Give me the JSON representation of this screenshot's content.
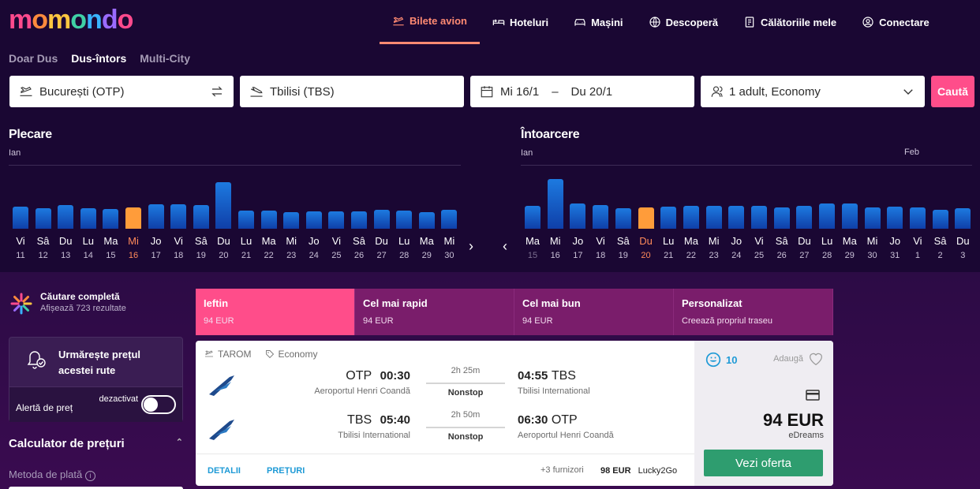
{
  "logo": [
    "m",
    "o",
    "m",
    "o",
    "n",
    "d",
    "o"
  ],
  "logo_colors": [
    "#ff4a8d",
    "#ff8a3d",
    "#ffc640",
    "#3fd0a5",
    "#39b3ff",
    "#9a6bff",
    "#ff4a8d"
  ],
  "nav": [
    {
      "label": "Bilete avion",
      "icon": "plane-icon",
      "active": true
    },
    {
      "label": "Hoteluri",
      "icon": "bed-icon"
    },
    {
      "label": "Mașini",
      "icon": "car-icon"
    },
    {
      "label": "Descoperă",
      "icon": "globe-icon"
    },
    {
      "label": "Călătoriile mele",
      "icon": "trips-icon"
    },
    {
      "label": "Conectare",
      "icon": "user-icon"
    }
  ],
  "trip_types": [
    "Doar Dus",
    "Dus-întors",
    "Multi-City"
  ],
  "search": {
    "from": "București (OTP)",
    "to": "Tbilisi (TBS)",
    "depart": "Mi 16/1",
    "date_sep": "–",
    "return": "Du 20/1",
    "pax": "1 adult, Economy",
    "button": "Caută"
  },
  "depart_cal": {
    "title": "Plecare",
    "month": "Ian",
    "days": [
      {
        "d": "Vi",
        "n": "11",
        "h": 28
      },
      {
        "d": "Sâ",
        "n": "12",
        "h": 26
      },
      {
        "d": "Du",
        "n": "13",
        "h": 30
      },
      {
        "d": "Lu",
        "n": "14",
        "h": 26
      },
      {
        "d": "Ma",
        "n": "15",
        "h": 25
      },
      {
        "d": "Mi",
        "n": "16",
        "h": 27,
        "sel": true
      },
      {
        "d": "Jo",
        "n": "17",
        "h": 31
      },
      {
        "d": "Vi",
        "n": "18",
        "h": 31
      },
      {
        "d": "Sâ",
        "n": "19",
        "h": 30
      },
      {
        "d": "Du",
        "n": "20",
        "h": 59
      },
      {
        "d": "Lu",
        "n": "21",
        "h": 23
      },
      {
        "d": "Ma",
        "n": "22",
        "h": 23
      },
      {
        "d": "Mi",
        "n": "23",
        "h": 21
      },
      {
        "d": "Jo",
        "n": "24",
        "h": 22
      },
      {
        "d": "Vi",
        "n": "25",
        "h": 22
      },
      {
        "d": "Sâ",
        "n": "26",
        "h": 22
      },
      {
        "d": "Du",
        "n": "27",
        "h": 24
      },
      {
        "d": "Lu",
        "n": "28",
        "h": 23
      },
      {
        "d": "Ma",
        "n": "29",
        "h": 21
      },
      {
        "d": "Mi",
        "n": "30",
        "h": 24
      }
    ]
  },
  "return_cal": {
    "title": "Întoarcere",
    "month": "Ian",
    "month2": "Feb",
    "days": [
      {
        "d": "Ma",
        "n": "15",
        "h": 29,
        "dim": true
      },
      {
        "d": "Mi",
        "n": "16",
        "h": 63
      },
      {
        "d": "Jo",
        "n": "17",
        "h": 32
      },
      {
        "d": "Vi",
        "n": "18",
        "h": 30
      },
      {
        "d": "Sâ",
        "n": "19",
        "h": 26
      },
      {
        "d": "Du",
        "n": "20",
        "h": 27,
        "sel": true
      },
      {
        "d": "Lu",
        "n": "21",
        "h": 28
      },
      {
        "d": "Ma",
        "n": "22",
        "h": 29
      },
      {
        "d": "Mi",
        "n": "23",
        "h": 29
      },
      {
        "d": "Jo",
        "n": "24",
        "h": 29
      },
      {
        "d": "Vi",
        "n": "25",
        "h": 29
      },
      {
        "d": "Sâ",
        "n": "26",
        "h": 27
      },
      {
        "d": "Du",
        "n": "27",
        "h": 29
      },
      {
        "d": "Lu",
        "n": "28",
        "h": 32
      },
      {
        "d": "Ma",
        "n": "29",
        "h": 32
      },
      {
        "d": "Mi",
        "n": "30",
        "h": 27
      },
      {
        "d": "Jo",
        "n": "31",
        "h": 28
      },
      {
        "d": "Vi",
        "n": "1",
        "h": 27
      },
      {
        "d": "Sâ",
        "n": "2",
        "h": 24
      },
      {
        "d": "Du",
        "n": "3",
        "h": 26
      }
    ]
  },
  "complete": {
    "title": "Căutare completă",
    "sub": "Afișează 723 rezultate"
  },
  "alert": {
    "text1": "Urmărește prețul",
    "text2": "acestei rute",
    "label": "Alertă de preț",
    "state": "dezactivat"
  },
  "calc": {
    "title": "Calculator de prețuri",
    "sub": "Metoda de plată"
  },
  "sort_tabs": [
    {
      "title": "Ieftin",
      "sub": "94 EUR",
      "active": true
    },
    {
      "title": "Cel mai rapid",
      "sub": "94 EUR"
    },
    {
      "title": "Cel mai bun",
      "sub": "94 EUR"
    },
    {
      "title": "Personalizat",
      "sub": "Creează propriul traseu"
    }
  ],
  "result": {
    "airline": "TAROM",
    "cabin": "Economy",
    "legs": [
      {
        "o_code": "OTP",
        "o_time": "00:30",
        "o_ap": "Aeroportul Henri Coandă",
        "dur": "2h 25m",
        "stops": "Nonstop",
        "d_time": "04:55",
        "d_code": "TBS",
        "d_ap": "Tbilisi International"
      },
      {
        "o_code": "TBS",
        "o_time": "05:40",
        "o_ap": "Tbilisi International",
        "dur": "2h 50m",
        "stops": "Nonstop",
        "d_time": "06:30",
        "d_code": "OTP",
        "d_ap": "Aeroportul Henri Coandă"
      }
    ],
    "details": "DETALII",
    "prices": "PREȚURI",
    "more_providers": "+3 furnizori",
    "alt_price": "98 EUR",
    "alt_provider": "Lucky2Go",
    "score": "10",
    "add": "Adaugă",
    "price": "94 EUR",
    "provider": "eDreams",
    "cta": "Vezi oferta"
  }
}
